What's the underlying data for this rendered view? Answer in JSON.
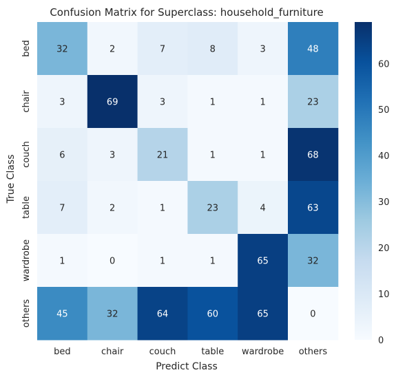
{
  "chart_data": {
    "type": "heatmap",
    "title": "Confusion Matrix for Superclass: household_furniture",
    "xlabel": "Predict Class",
    "ylabel": "True Class",
    "x_categories": [
      "bed",
      "chair",
      "couch",
      "table",
      "wardrobe",
      "others"
    ],
    "y_categories": [
      "bed",
      "chair",
      "couch",
      "table",
      "wardrobe",
      "others"
    ],
    "values": [
      [
        32,
        2,
        7,
        8,
        3,
        48
      ],
      [
        3,
        69,
        3,
        1,
        1,
        23
      ],
      [
        6,
        3,
        21,
        1,
        1,
        68
      ],
      [
        7,
        2,
        1,
        23,
        4,
        63
      ],
      [
        1,
        0,
        1,
        1,
        65,
        32
      ],
      [
        45,
        32,
        64,
        60,
        65,
        0
      ]
    ],
    "colormap": "Blues",
    "vmin": 0,
    "vmax": 69,
    "colorbar": {
      "ticks": [
        0,
        10,
        20,
        30,
        40,
        50,
        60
      ],
      "tick_labels": [
        "0",
        "10",
        "20",
        "30",
        "40",
        "50",
        "60"
      ]
    },
    "annotations": true,
    "grid": false
  }
}
